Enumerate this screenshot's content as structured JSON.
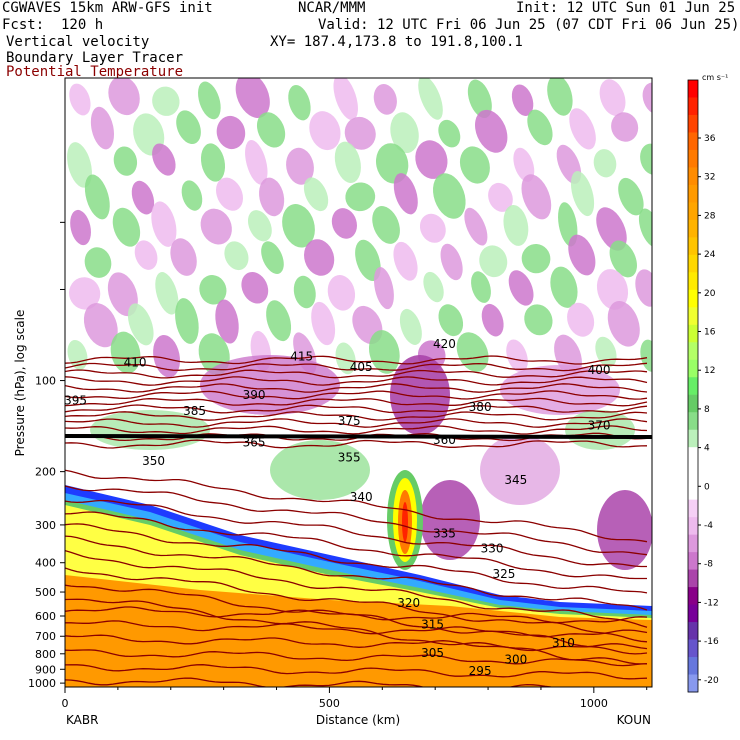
{
  "header": {
    "model_title": "CGWAVES 15km ARW-GFS init",
    "forecast": "Fcst:  120 h",
    "org": "NCAR/MMM",
    "init": "Init: 12 UTC Sun 01 Jun 25",
    "valid": "Valid: 12 UTC Fri 06 Jun 25 (07 CDT Fri 06 Jun 25)",
    "field1": "Vertical velocity",
    "field2": "Boundary Layer Tracer",
    "field3": "Potential Temperature",
    "xy": "XY= 187.4,173.8 to 191.8,100.1",
    "field3_color": "#8b0000"
  },
  "chart_data": {
    "type": "heatmap",
    "title": "Vertical velocity",
    "xlabel": "Distance (km)",
    "ylabel": "Pressure (hPa), log scale",
    "x_range": [
      0,
      1110
    ],
    "x_ticks": [
      0,
      500,
      1000
    ],
    "x_tick_labels": [
      "0",
      "500",
      "1000"
    ],
    "y_scale": "log",
    "y_range_hpa": [
      1030,
      10
    ],
    "y_ticks": [
      100,
      200,
      300,
      400,
      500,
      600,
      700,
      800,
      900,
      1000
    ],
    "y_tick_labels": [
      "100",
      "200",
      "300",
      "400",
      "500",
      "600",
      "700",
      "800",
      "900",
      "1000"
    ],
    "endpoints": {
      "left": "KABR",
      "right": "KOUN"
    },
    "colorbar": {
      "units": "cm s⁻¹",
      "tick_labels": [
        "36",
        "32",
        "28",
        "24",
        "20",
        "16",
        "12",
        "8",
        "4",
        "0",
        "-4",
        "-8",
        "-12",
        "-16",
        "-20"
      ],
      "colors": [
        "#ff0000",
        "#ff2200",
        "#ff4400",
        "#ff6600",
        "#ff7a00",
        "#ff8c00",
        "#ff9a00",
        "#ffa500",
        "#ffb300",
        "#ffc400",
        "#ffd700",
        "#ffea00",
        "#ffff00",
        "#f0ff30",
        "#ccff33",
        "#b3ff66",
        "#99ff66",
        "#66ee66",
        "#66cc66",
        "#88dd88",
        "#bbf0bb",
        "#ffffff",
        "#ffffff",
        "#ffffff",
        "#f5d0f5",
        "#eebbee",
        "#dd99dd",
        "#cc77cc",
        "#aa44aa",
        "#880088",
        "#770099",
        "#6633aa",
        "#6655cc",
        "#6677dd",
        "#8899ee"
      ]
    },
    "theta_labels": [
      {
        "value": "420",
        "x_km": 155,
        "p_hpa": 78
      },
      {
        "value": "415",
        "x_km": 95,
        "p_hpa": 86
      },
      {
        "value": "410",
        "x_km": 25,
        "p_hpa": 90
      },
      {
        "value": "405",
        "x_km": 120,
        "p_hpa": 93
      },
      {
        "value": "400",
        "x_km": 220,
        "p_hpa": 95
      },
      {
        "value": "395",
        "x_km": 0,
        "p_hpa": 120
      },
      {
        "value": "390",
        "x_km": 75,
        "p_hpa": 115
      },
      {
        "value": "385",
        "x_km": 50,
        "p_hpa": 130
      },
      {
        "value": "380",
        "x_km": 170,
        "p_hpa": 126
      },
      {
        "value": "375",
        "x_km": 115,
        "p_hpa": 140
      },
      {
        "value": "370",
        "x_km": 220,
        "p_hpa": 145
      },
      {
        "value": "365",
        "x_km": 75,
        "p_hpa": 165
      },
      {
        "value": "360",
        "x_km": 155,
        "p_hpa": 162
      },
      {
        "value": "355",
        "x_km": 115,
        "p_hpa": 185
      },
      {
        "value": "350",
        "x_km": 255,
        "p_hpa": 190
      },
      {
        "value": "345",
        "x_km": 185,
        "p_hpa": 220
      },
      {
        "value": "340",
        "x_km": 120,
        "p_hpa": 250
      },
      {
        "value": "335",
        "x_km": 155,
        "p_hpa": 330
      },
      {
        "value": "330",
        "x_km": 175,
        "p_hpa": 370
      },
      {
        "value": "325",
        "x_km": 180,
        "p_hpa": 450
      },
      {
        "value": "320",
        "x_km": 140,
        "p_hpa": 560
      },
      {
        "value": "315",
        "x_km": 150,
        "p_hpa": 660
      },
      {
        "value": "310",
        "x_km": 205,
        "p_hpa": 760
      },
      {
        "value": "305",
        "x_km": 150,
        "p_hpa": 820
      },
      {
        "value": "300",
        "x_km": 185,
        "p_hpa": 860
      },
      {
        "value": "295",
        "x_km": 170,
        "p_hpa": 940
      }
    ]
  }
}
